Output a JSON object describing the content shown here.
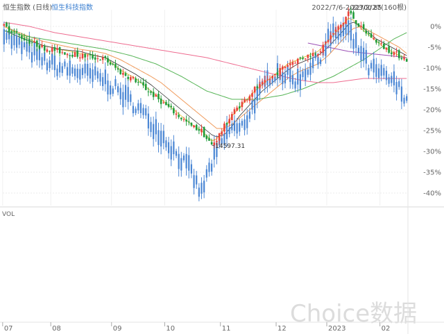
{
  "header": {
    "title": "恒生指数 (日线)",
    "compare_title": "恒生科技指数",
    "range": "2022/7/6-2023/2/27(160根)"
  },
  "volume_label": "VOL",
  "watermark": "Choice数据",
  "colors": {
    "up": "#e8423a",
    "down": "#1f9b3a",
    "compare": "#4a86d4",
    "ma5": "#e0c84a",
    "ma10": "#2f2f2f",
    "ma20": "#f09a5a",
    "ma60": "#55b455",
    "ma120": "#ee6b8f",
    "ma250": "#9b4fb5"
  },
  "chart_data": {
    "type": "candlestick",
    "x_ticks": [
      "07",
      "08",
      "09",
      "10",
      "11",
      "12",
      "2023",
      "02"
    ],
    "y_ticks": [
      "0%",
      "-5%",
      "-10%",
      "-15%",
      "-20%",
      "-25%",
      "-30%",
      "-35%",
      "-40%"
    ],
    "ylim": [
      -43,
      4
    ],
    "annotations": [
      {
        "label": "22700.85",
        "value": 3.5
      },
      {
        "label": "14597.31",
        "value": -28.5
      }
    ],
    "series": [
      {
        "name": "恒生指数",
        "kind": "candles",
        "waypoints": [
          [
            0,
            0
          ],
          [
            3,
            -1
          ],
          [
            8,
            -3
          ],
          [
            15,
            -5
          ],
          [
            22,
            -6
          ],
          [
            30,
            -7
          ],
          [
            36,
            -7.5
          ],
          [
            40,
            -8
          ],
          [
            46,
            -11
          ],
          [
            52,
            -13
          ],
          [
            58,
            -16
          ],
          [
            62,
            -18
          ],
          [
            66,
            -20
          ],
          [
            70,
            -22
          ],
          [
            74,
            -24
          ],
          [
            78,
            -25
          ],
          [
            80,
            -27
          ],
          [
            82,
            -28.5
          ],
          [
            84,
            -27
          ],
          [
            87,
            -24
          ],
          [
            90,
            -21
          ],
          [
            93,
            -19
          ],
          [
            96,
            -17
          ],
          [
            99,
            -15
          ],
          [
            102,
            -14
          ],
          [
            105,
            -12.5
          ],
          [
            108,
            -11
          ],
          [
            112,
            -9
          ],
          [
            116,
            -8
          ],
          [
            120,
            -7
          ],
          [
            124,
            -6
          ],
          [
            126,
            -5
          ],
          [
            128,
            -3
          ],
          [
            131,
            -1
          ],
          [
            134,
            1
          ],
          [
            136,
            3.5
          ],
          [
            138,
            2
          ],
          [
            141,
            -0.5
          ],
          [
            144,
            -2
          ],
          [
            147,
            -3.5
          ],
          [
            150,
            -5
          ],
          [
            153,
            -6
          ],
          [
            156,
            -7
          ],
          [
            159,
            -8
          ]
        ]
      },
      {
        "name": "恒生科技指数",
        "kind": "line",
        "waypoints": [
          [
            0,
            -1
          ],
          [
            4,
            -4
          ],
          [
            8,
            -5
          ],
          [
            15,
            -8
          ],
          [
            22,
            -10
          ],
          [
            30,
            -11
          ],
          [
            36,
            -12
          ],
          [
            40,
            -13
          ],
          [
            46,
            -16
          ],
          [
            52,
            -19
          ],
          [
            58,
            -23
          ],
          [
            62,
            -26
          ],
          [
            66,
            -29
          ],
          [
            70,
            -32
          ],
          [
            74,
            -35
          ],
          [
            76,
            -38
          ],
          [
            78,
            -40
          ],
          [
            80,
            -36
          ],
          [
            82,
            -33
          ],
          [
            84,
            -30
          ],
          [
            87,
            -27
          ],
          [
            90,
            -24
          ],
          [
            93,
            -25
          ],
          [
            96,
            -22
          ],
          [
            99,
            -18
          ],
          [
            102,
            -15
          ],
          [
            105,
            -12
          ],
          [
            108,
            -11
          ],
          [
            112,
            -12
          ],
          [
            116,
            -13
          ],
          [
            120,
            -10
          ],
          [
            124,
            -8
          ],
          [
            126,
            -6
          ],
          [
            128,
            -3
          ],
          [
            131,
            -2
          ],
          [
            134,
            -1
          ],
          [
            136,
            -1
          ],
          [
            138,
            -4
          ],
          [
            141,
            -6
          ],
          [
            144,
            -10
          ],
          [
            147,
            -11
          ],
          [
            150,
            -12
          ],
          [
            153,
            -13
          ],
          [
            156,
            -15
          ],
          [
            159,
            -17
          ]
        ]
      },
      {
        "name": "MA5",
        "kind": "line",
        "waypoints": [
          [
            0,
            0
          ],
          [
            8,
            -2.5
          ],
          [
            15,
            -4.5
          ],
          [
            22,
            -5.5
          ],
          [
            30,
            -6.5
          ],
          [
            36,
            -7
          ],
          [
            40,
            -7.5
          ],
          [
            46,
            -10.5
          ],
          [
            52,
            -12.5
          ],
          [
            58,
            -15.5
          ],
          [
            62,
            -17.5
          ],
          [
            66,
            -19.5
          ],
          [
            70,
            -21.5
          ],
          [
            74,
            -23.5
          ],
          [
            78,
            -25
          ],
          [
            82,
            -27.5
          ],
          [
            84,
            -27
          ],
          [
            87,
            -24.5
          ],
          [
            90,
            -21.5
          ],
          [
            93,
            -19.5
          ],
          [
            96,
            -17.5
          ],
          [
            99,
            -15.5
          ],
          [
            102,
            -14
          ],
          [
            105,
            -12.5
          ],
          [
            108,
            -11
          ],
          [
            112,
            -9
          ],
          [
            116,
            -8
          ],
          [
            120,
            -7
          ],
          [
            124,
            -6
          ],
          [
            128,
            -3.5
          ],
          [
            131,
            -1.5
          ],
          [
            134,
            0.5
          ],
          [
            136,
            2
          ],
          [
            138,
            1.5
          ],
          [
            141,
            -0.5
          ],
          [
            144,
            -2
          ],
          [
            147,
            -3.5
          ],
          [
            150,
            -5
          ],
          [
            153,
            -6
          ],
          [
            156,
            -7
          ],
          [
            159,
            -7.5
          ]
        ]
      },
      {
        "name": "MA10",
        "kind": "line",
        "waypoints": [
          [
            0,
            -1
          ],
          [
            8,
            -3
          ],
          [
            15,
            -4.5
          ],
          [
            22,
            -5.5
          ],
          [
            30,
            -6
          ],
          [
            36,
            -7
          ],
          [
            40,
            -7.5
          ],
          [
            46,
            -9.5
          ],
          [
            52,
            -11.5
          ],
          [
            58,
            -14
          ],
          [
            62,
            -16
          ],
          [
            66,
            -18
          ],
          [
            70,
            -20
          ],
          [
            74,
            -22
          ],
          [
            78,
            -24
          ],
          [
            82,
            -26
          ],
          [
            84,
            -26.5
          ],
          [
            87,
            -26
          ],
          [
            90,
            -24
          ],
          [
            93,
            -21.5
          ],
          [
            96,
            -19.5
          ],
          [
            99,
            -17.5
          ],
          [
            102,
            -15.5
          ],
          [
            105,
            -14
          ],
          [
            108,
            -12.5
          ],
          [
            112,
            -10.5
          ],
          [
            116,
            -9
          ],
          [
            120,
            -8
          ],
          [
            124,
            -7
          ],
          [
            128,
            -5
          ],
          [
            131,
            -3
          ],
          [
            134,
            -1
          ],
          [
            136,
            0.5
          ],
          [
            138,
            1
          ],
          [
            141,
            0
          ],
          [
            144,
            -1.5
          ],
          [
            147,
            -3
          ],
          [
            150,
            -4
          ],
          [
            153,
            -5
          ],
          [
            156,
            -6
          ],
          [
            159,
            -7
          ]
        ]
      },
      {
        "name": "MA20",
        "kind": "line",
        "waypoints": [
          [
            0,
            0
          ],
          [
            8,
            -2
          ],
          [
            15,
            -3.5
          ],
          [
            22,
            -4.5
          ],
          [
            30,
            -5.5
          ],
          [
            36,
            -6
          ],
          [
            40,
            -6.5
          ],
          [
            46,
            -8
          ],
          [
            52,
            -10
          ],
          [
            58,
            -12
          ],
          [
            62,
            -13.5
          ],
          [
            66,
            -15.5
          ],
          [
            70,
            -17.5
          ],
          [
            74,
            -19.5
          ],
          [
            78,
            -21.5
          ],
          [
            82,
            -23.5
          ],
          [
            84,
            -24.5
          ],
          [
            87,
            -24.5
          ],
          [
            90,
            -23.5
          ],
          [
            93,
            -22
          ],
          [
            96,
            -20.5
          ],
          [
            99,
            -19
          ],
          [
            102,
            -17.5
          ],
          [
            105,
            -16
          ],
          [
            108,
            -14.5
          ],
          [
            112,
            -12.5
          ],
          [
            116,
            -11
          ],
          [
            120,
            -10
          ],
          [
            124,
            -9
          ],
          [
            128,
            -7
          ],
          [
            131,
            -5
          ],
          [
            134,
            -3
          ],
          [
            136,
            -1.5
          ],
          [
            138,
            -0.5
          ],
          [
            141,
            0
          ],
          [
            144,
            -1
          ],
          [
            147,
            -2
          ],
          [
            150,
            -3
          ],
          [
            153,
            -4
          ],
          [
            156,
            -5
          ],
          [
            159,
            -6.5
          ]
        ]
      },
      {
        "name": "MA60",
        "kind": "line",
        "waypoints": [
          [
            0,
            -1
          ],
          [
            10,
            -2.5
          ],
          [
            20,
            -3.5
          ],
          [
            30,
            -4.5
          ],
          [
            40,
            -5.5
          ],
          [
            50,
            -7
          ],
          [
            60,
            -9
          ],
          [
            70,
            -12
          ],
          [
            80,
            -15.5
          ],
          [
            90,
            -17.5
          ],
          [
            100,
            -17.5
          ],
          [
            110,
            -16.5
          ],
          [
            118,
            -15
          ],
          [
            124,
            -13.5
          ],
          [
            130,
            -12
          ],
          [
            136,
            -10
          ],
          [
            142,
            -8
          ],
          [
            148,
            -5.5
          ],
          [
            154,
            -3
          ],
          [
            159,
            -1.5
          ]
        ]
      },
      {
        "name": "MA120",
        "kind": "line",
        "waypoints": [
          [
            0,
            1
          ],
          [
            10,
            0
          ],
          [
            20,
            -1.5
          ],
          [
            30,
            -2.5
          ],
          [
            40,
            -3.5
          ],
          [
            50,
            -4.5
          ],
          [
            60,
            -5.5
          ],
          [
            70,
            -6.5
          ],
          [
            80,
            -7.5
          ],
          [
            90,
            -9
          ],
          [
            100,
            -10.5
          ],
          [
            110,
            -12
          ],
          [
            118,
            -13
          ],
          [
            124,
            -13.5
          ],
          [
            130,
            -13.5
          ],
          [
            136,
            -13
          ],
          [
            142,
            -12.5
          ],
          [
            148,
            -12.5
          ],
          [
            154,
            -12.5
          ],
          [
            159,
            -12.5
          ]
        ]
      },
      {
        "name": "MA250",
        "kind": "line",
        "waypoints": [
          [
            120,
            -4
          ],
          [
            128,
            -5
          ],
          [
            136,
            -6
          ],
          [
            144,
            -6.5
          ],
          [
            152,
            -7
          ],
          [
            159,
            -7.5
          ]
        ]
      }
    ]
  }
}
